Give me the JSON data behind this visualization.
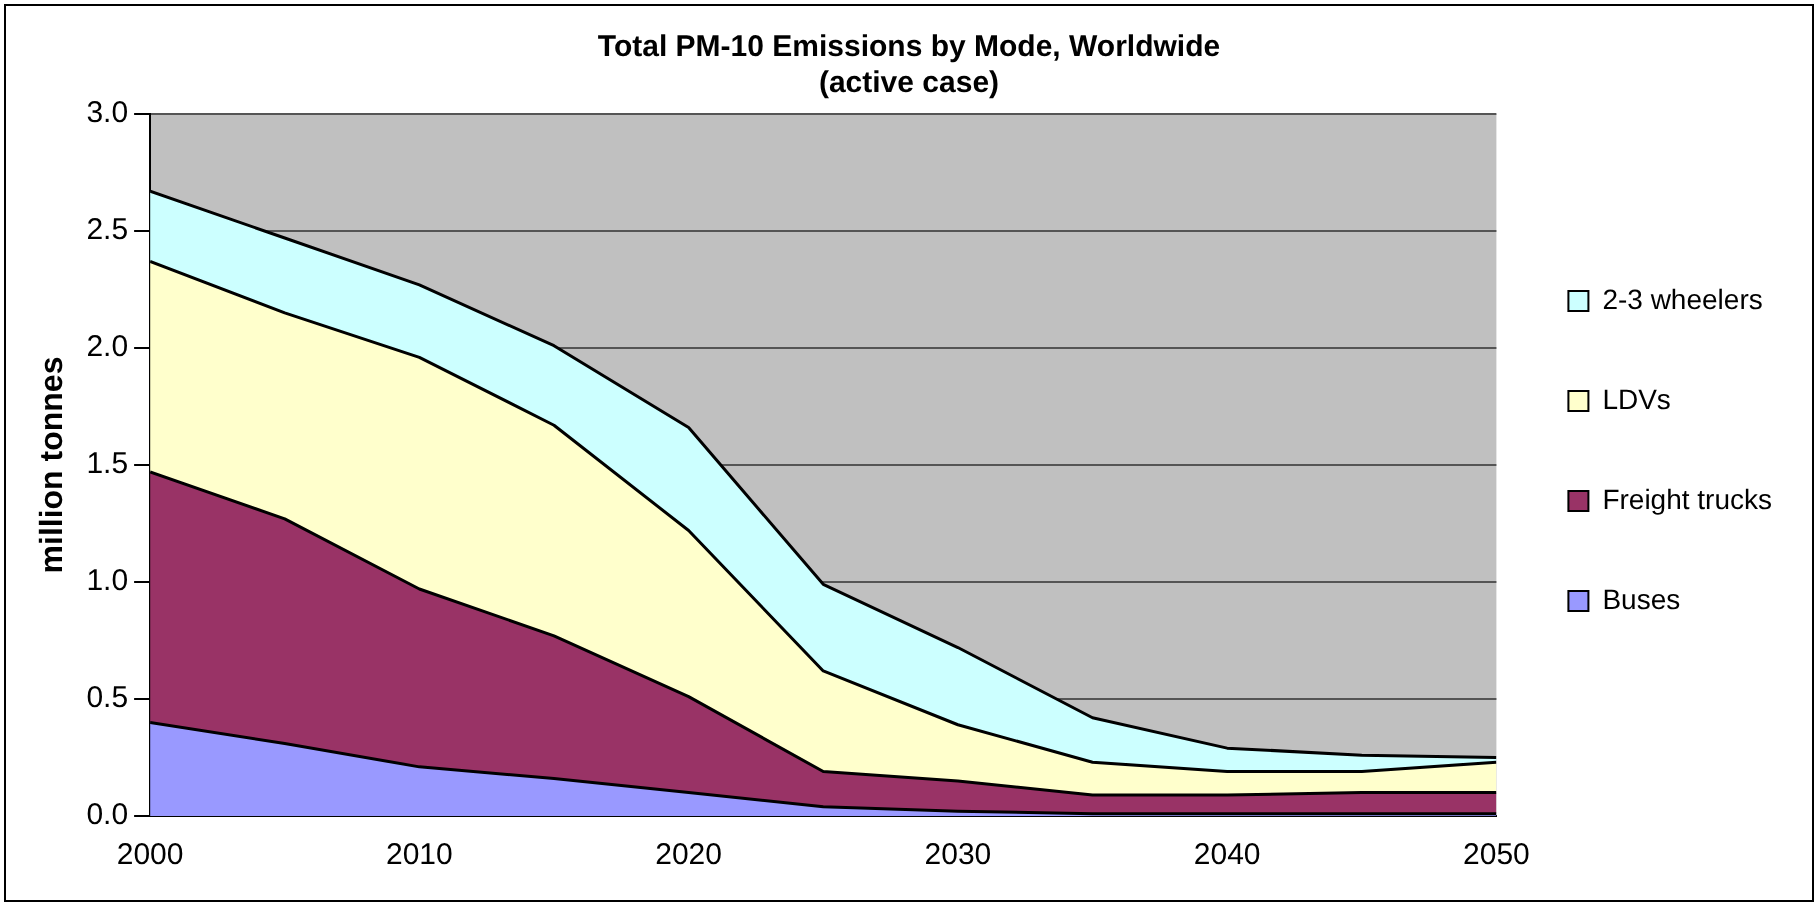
{
  "chart_data": {
    "type": "area",
    "stacked": true,
    "title": "Total PM-10 Emissions by Mode, Worldwide\n(active case)",
    "ylabel": "million tonnes",
    "x": [
      2000,
      2005,
      2010,
      2015,
      2020,
      2025,
      2030,
      2035,
      2040,
      2045,
      2050
    ],
    "xlim": [
      2000,
      2050
    ],
    "xticks": [
      2000,
      2010,
      2020,
      2030,
      2040,
      2050
    ],
    "ylim": [
      0,
      3
    ],
    "yticks": [
      {
        "value": 0,
        "label": "0.0"
      },
      {
        "value": 0.5,
        "label": "0.5"
      },
      {
        "value": 1,
        "label": "1.0"
      },
      {
        "value": 1.5,
        "label": "1.5"
      },
      {
        "value": 2,
        "label": "2.0"
      },
      {
        "value": 2.5,
        "label": "2.5"
      },
      {
        "value": 3,
        "label": "3.0"
      }
    ],
    "grid": "y",
    "legend": "right",
    "series": [
      {
        "name": "Buses",
        "color": "#9999ff",
        "values": [
          0.4,
          0.31,
          0.21,
          0.16,
          0.1,
          0.04,
          0.02,
          0.01,
          0.01,
          0.01,
          0.01
        ]
      },
      {
        "name": "Freight trucks",
        "color": "#993366",
        "values": [
          1.07,
          0.96,
          0.76,
          0.61,
          0.41,
          0.15,
          0.13,
          0.08,
          0.08,
          0.09,
          0.09
        ]
      },
      {
        "name": "LDVs",
        "color": "#ffffcc",
        "values": [
          0.9,
          0.88,
          0.99,
          0.9,
          0.71,
          0.43,
          0.24,
          0.14,
          0.1,
          0.09,
          0.13
        ]
      },
      {
        "name": "2-3 wheelers",
        "color": "#ccffff",
        "values": [
          0.3,
          0.32,
          0.31,
          0.34,
          0.44,
          0.37,
          0.33,
          0.19,
          0.1,
          0.07,
          0.02
        ]
      }
    ]
  }
}
